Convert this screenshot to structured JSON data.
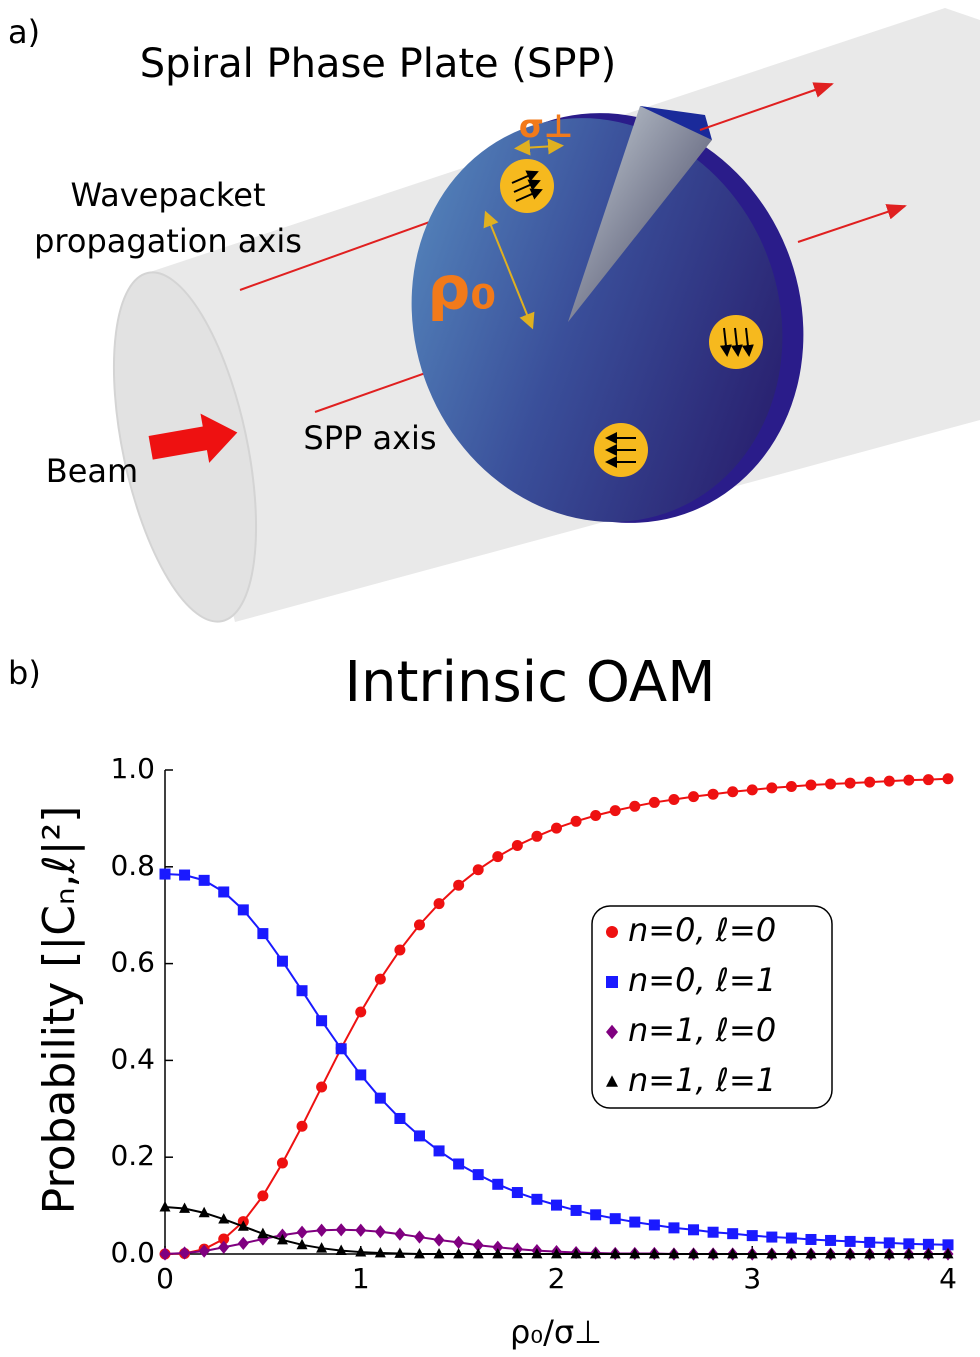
{
  "panel_a": {
    "label": "a)",
    "title": "Spiral Phase Plate (SPP)",
    "wavepacket_label": [
      "Wavepacket",
      "propagation axis"
    ],
    "rho_label": "ρ₀",
    "sigma_label": "σ⊥",
    "spp_axis_label": "SPP axis",
    "beam_label": "Beam"
  },
  "panel_b_label": "b)",
  "chart_data": {
    "type": "line",
    "title": "Intrinsic OAM",
    "x_label": "ρ₀/σ⊥",
    "y_label": "Probability [|Cₙ,ℓ|²]",
    "x": [
      0,
      0.1,
      0.2,
      0.3,
      0.4,
      0.5,
      0.6,
      0.7,
      0.8,
      0.9,
      1.0,
      1.1,
      1.2,
      1.3,
      1.4,
      1.5,
      1.6,
      1.7,
      1.8,
      1.9,
      2.0,
      2.1,
      2.2,
      2.3,
      2.4,
      2.5,
      2.6,
      2.7,
      2.8,
      2.9,
      3.0,
      3.1,
      3.2,
      3.3,
      3.4,
      3.5,
      3.6,
      3.7,
      3.8,
      3.9,
      4.0
    ],
    "series": [
      {
        "name": "n=0, ℓ=0",
        "color": "#ee1111",
        "marker": "circle",
        "values": [
          0,
          0.001,
          0.01,
          0.031,
          0.067,
          0.12,
          0.188,
          0.264,
          0.345,
          0.425,
          0.5,
          0.568,
          0.628,
          0.68,
          0.724,
          0.762,
          0.794,
          0.821,
          0.844,
          0.863,
          0.88,
          0.894,
          0.906,
          0.916,
          0.925,
          0.933,
          0.939,
          0.945,
          0.95,
          0.955,
          0.959,
          0.963,
          0.966,
          0.969,
          0.971,
          0.973,
          0.975,
          0.977,
          0.979,
          0.98,
          0.982
        ]
      },
      {
        "name": "n=0, ℓ=1",
        "color": "#1a1aff",
        "marker": "square",
        "values": [
          0.785,
          0.783,
          0.772,
          0.748,
          0.711,
          0.662,
          0.605,
          0.544,
          0.482,
          0.424,
          0.37,
          0.322,
          0.28,
          0.244,
          0.213,
          0.186,
          0.164,
          0.144,
          0.127,
          0.113,
          0.101,
          0.09,
          0.081,
          0.073,
          0.066,
          0.06,
          0.054,
          0.05,
          0.045,
          0.042,
          0.038,
          0.035,
          0.033,
          0.03,
          0.028,
          0.026,
          0.024,
          0.023,
          0.021,
          0.02,
          0.019
        ]
      },
      {
        "name": "n=1, ℓ=0",
        "color": "#800080",
        "marker": "diamond",
        "values": [
          0,
          0.002,
          0.006,
          0.014,
          0.022,
          0.031,
          0.039,
          0.045,
          0.049,
          0.05,
          0.049,
          0.046,
          0.041,
          0.035,
          0.029,
          0.024,
          0.018,
          0.014,
          0.01,
          0.007,
          0.005,
          0.003,
          0.002,
          0.001,
          0.001,
          0.001,
          0,
          0,
          0,
          0,
          0,
          0,
          0,
          0,
          0,
          0,
          0,
          0,
          0,
          0,
          0
        ]
      },
      {
        "name": "n=1, ℓ=1",
        "color": "#000000",
        "marker": "triangle",
        "values": [
          0.097,
          0.094,
          0.085,
          0.072,
          0.057,
          0.042,
          0.029,
          0.019,
          0.012,
          0.007,
          0.004,
          0.002,
          0.001,
          0,
          0,
          0,
          0,
          0,
          0,
          0,
          0,
          0,
          0,
          0,
          0,
          0,
          0,
          0,
          0,
          0,
          0,
          0,
          0,
          0,
          0,
          0,
          0,
          0,
          0,
          0,
          0
        ]
      }
    ],
    "xlim": [
      0,
      4
    ],
    "ylim": [
      0,
      1.0
    ],
    "xticks": [
      0,
      1,
      2,
      3,
      4
    ],
    "yticks": [
      {
        "value": 0,
        "label": "0.0"
      },
      {
        "value": 0.2,
        "label": "0.2"
      },
      {
        "value": 0.4,
        "label": "0.4"
      },
      {
        "value": 0.6,
        "label": "0.6"
      },
      {
        "value": 0.8,
        "label": "0.8"
      },
      {
        "value": 1.0,
        "label": "1.0"
      }
    ],
    "grid": false,
    "legend": "center right"
  }
}
